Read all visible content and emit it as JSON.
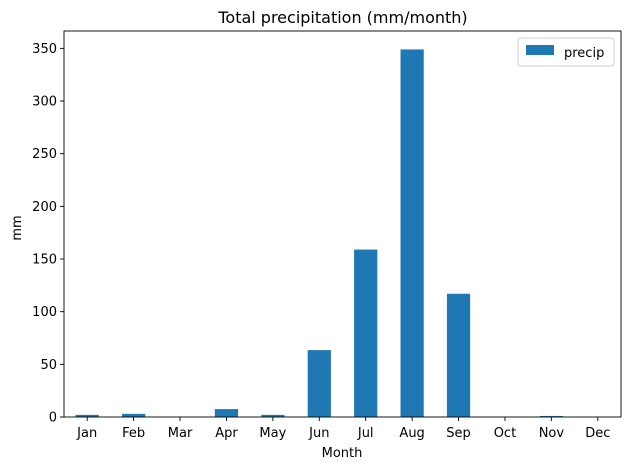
{
  "chart_data": {
    "type": "bar",
    "title": "Total precipitation (mm/month)",
    "xlabel": "Month",
    "ylabel": "mm",
    "categories": [
      "Jan",
      "Feb",
      "Mar",
      "Apr",
      "May",
      "Jun",
      "Jul",
      "Aug",
      "Sep",
      "Oct",
      "Nov",
      "Dec"
    ],
    "series": [
      {
        "name": "precip",
        "color": "#1f77b4",
        "values": [
          2,
          3,
          0,
          7.5,
          2,
          63.5,
          159,
          349,
          117,
          0,
          1,
          0
        ]
      }
    ],
    "ylim": [
      0,
      366.5
    ],
    "yticks": [
      0,
      50,
      100,
      150,
      200,
      250,
      300,
      350
    ],
    "legend": "top-right",
    "grid": false
  }
}
